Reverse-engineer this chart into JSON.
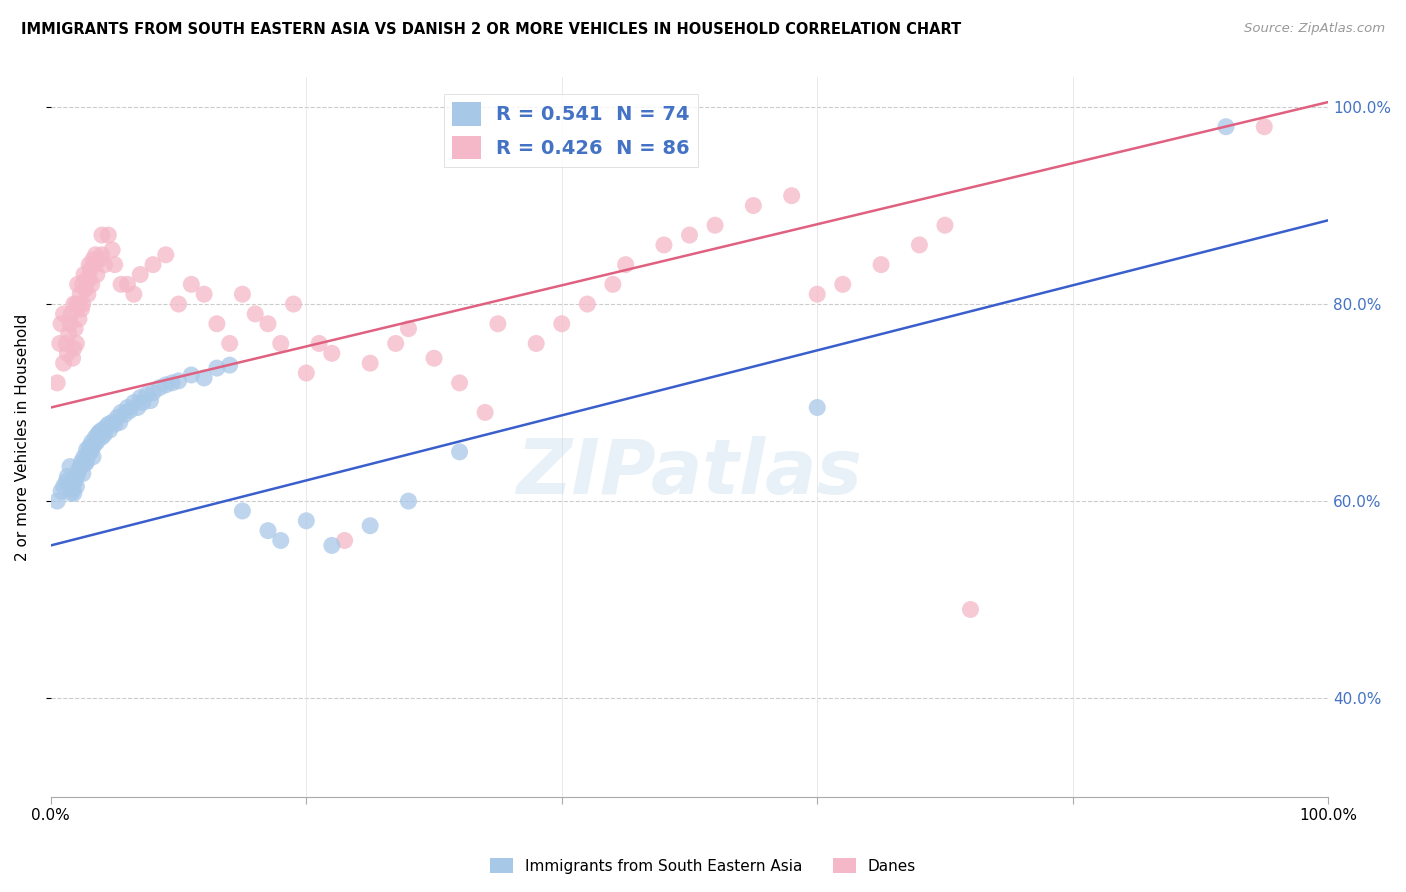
{
  "title": "IMMIGRANTS FROM SOUTH EASTERN ASIA VS DANISH 2 OR MORE VEHICLES IN HOUSEHOLD CORRELATION CHART",
  "source": "Source: ZipAtlas.com",
  "ylabel": "2 or more Vehicles in Household",
  "legend1_label": "R = 0.541  N = 74",
  "legend2_label": "R = 0.426  N = 86",
  "legend1_patch_color": "#a8c8e8",
  "legend2_patch_color": "#f4b8c8",
  "line1_color": "#3a5fcd",
  "line2_color": "#e06080",
  "scatter1_color": "#a8c8e8",
  "scatter2_color": "#f4b8c8",
  "watermark": "ZIPatlas",
  "bottom_legend1": "Immigrants from South Eastern Asia",
  "bottom_legend2": "Danes",
  "blue_line_x0": 0.0,
  "blue_line_y0": 0.555,
  "blue_line_x1": 1.0,
  "blue_line_y1": 0.885,
  "pink_line_x0": 0.0,
  "pink_line_y0": 0.695,
  "pink_line_x1": 1.0,
  "pink_line_y1": 1.005,
  "blue_x": [
    0.005,
    0.008,
    0.01,
    0.012,
    0.013,
    0.015,
    0.015,
    0.016,
    0.017,
    0.018,
    0.018,
    0.019,
    0.02,
    0.02,
    0.021,
    0.022,
    0.023,
    0.024,
    0.025,
    0.025,
    0.026,
    0.027,
    0.028,
    0.028,
    0.03,
    0.03,
    0.031,
    0.032,
    0.033,
    0.033,
    0.034,
    0.035,
    0.036,
    0.037,
    0.038,
    0.04,
    0.04,
    0.042,
    0.043,
    0.045,
    0.046,
    0.048,
    0.05,
    0.052,
    0.054,
    0.055,
    0.058,
    0.06,
    0.062,
    0.065,
    0.068,
    0.07,
    0.072,
    0.075,
    0.078,
    0.08,
    0.085,
    0.09,
    0.095,
    0.1,
    0.11,
    0.12,
    0.13,
    0.14,
    0.15,
    0.17,
    0.18,
    0.2,
    0.22,
    0.25,
    0.28,
    0.32,
    0.6,
    0.92
  ],
  "blue_y": [
    0.6,
    0.61,
    0.615,
    0.62,
    0.625,
    0.635,
    0.618,
    0.608,
    0.612,
    0.608,
    0.618,
    0.622,
    0.625,
    0.615,
    0.628,
    0.632,
    0.635,
    0.64,
    0.628,
    0.638,
    0.645,
    0.638,
    0.64,
    0.652,
    0.648,
    0.655,
    0.65,
    0.66,
    0.645,
    0.655,
    0.658,
    0.665,
    0.66,
    0.668,
    0.67,
    0.665,
    0.672,
    0.668,
    0.675,
    0.678,
    0.672,
    0.68,
    0.678,
    0.685,
    0.68,
    0.69,
    0.688,
    0.695,
    0.692,
    0.7,
    0.695,
    0.705,
    0.7,
    0.708,
    0.702,
    0.71,
    0.715,
    0.718,
    0.72,
    0.722,
    0.728,
    0.725,
    0.735,
    0.738,
    0.59,
    0.57,
    0.56,
    0.58,
    0.555,
    0.575,
    0.6,
    0.65,
    0.695,
    0.98
  ],
  "pink_x": [
    0.005,
    0.007,
    0.008,
    0.01,
    0.01,
    0.012,
    0.013,
    0.014,
    0.015,
    0.016,
    0.017,
    0.018,
    0.018,
    0.019,
    0.02,
    0.02,
    0.021,
    0.022,
    0.022,
    0.023,
    0.024,
    0.025,
    0.025,
    0.026,
    0.027,
    0.028,
    0.029,
    0.03,
    0.03,
    0.031,
    0.032,
    0.033,
    0.034,
    0.035,
    0.036,
    0.038,
    0.04,
    0.04,
    0.042,
    0.045,
    0.048,
    0.05,
    0.055,
    0.06,
    0.065,
    0.07,
    0.08,
    0.09,
    0.1,
    0.11,
    0.12,
    0.13,
    0.14,
    0.15,
    0.16,
    0.17,
    0.18,
    0.19,
    0.2,
    0.21,
    0.22,
    0.23,
    0.25,
    0.27,
    0.28,
    0.3,
    0.32,
    0.34,
    0.35,
    0.38,
    0.4,
    0.42,
    0.44,
    0.45,
    0.48,
    0.5,
    0.52,
    0.55,
    0.58,
    0.6,
    0.62,
    0.65,
    0.68,
    0.7,
    0.72,
    0.95
  ],
  "pink_y": [
    0.72,
    0.76,
    0.78,
    0.74,
    0.79,
    0.76,
    0.75,
    0.77,
    0.78,
    0.79,
    0.745,
    0.755,
    0.8,
    0.775,
    0.76,
    0.8,
    0.82,
    0.785,
    0.8,
    0.81,
    0.795,
    0.82,
    0.8,
    0.83,
    0.815,
    0.825,
    0.81,
    0.84,
    0.825,
    0.835,
    0.82,
    0.845,
    0.84,
    0.85,
    0.83,
    0.845,
    0.85,
    0.87,
    0.84,
    0.87,
    0.855,
    0.84,
    0.82,
    0.82,
    0.81,
    0.83,
    0.84,
    0.85,
    0.8,
    0.82,
    0.81,
    0.78,
    0.76,
    0.81,
    0.79,
    0.78,
    0.76,
    0.8,
    0.73,
    0.76,
    0.75,
    0.56,
    0.74,
    0.76,
    0.775,
    0.745,
    0.72,
    0.69,
    0.78,
    0.76,
    0.78,
    0.8,
    0.82,
    0.84,
    0.86,
    0.87,
    0.88,
    0.9,
    0.91,
    0.81,
    0.82,
    0.84,
    0.86,
    0.88,
    0.49,
    0.98
  ],
  "ylim_min": 0.3,
  "ylim_max": 1.03,
  "xlim_min": 0.0,
  "xlim_max": 1.0,
  "ytick_positions": [
    0.4,
    0.6,
    0.8,
    1.0
  ],
  "ytick_labels": [
    "40.0%",
    "60.0%",
    "80.0%",
    "100.0%"
  ],
  "xtick_positions": [
    0.0,
    0.2,
    0.4,
    0.6,
    0.8,
    1.0
  ],
  "xtick_labels_show": [
    "0.0%",
    "",
    "",
    "",
    "",
    "100.0%"
  ]
}
